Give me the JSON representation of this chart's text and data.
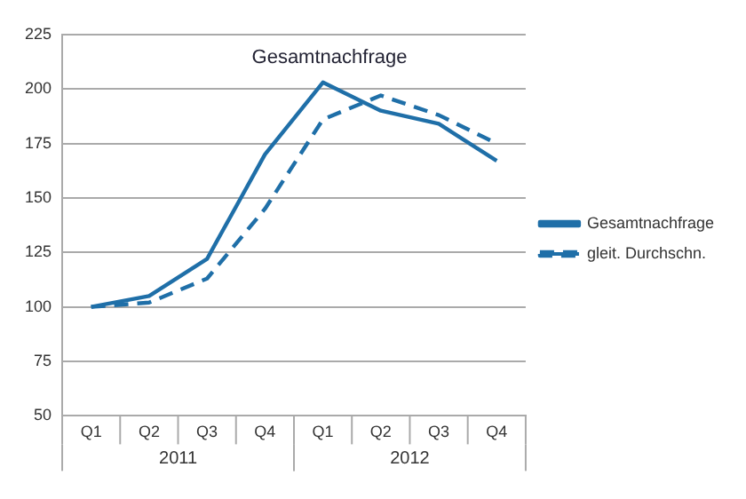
{
  "chart_data": {
    "type": "line",
    "title": "Gesamtnachfrage",
    "categories": [
      "Q1",
      "Q2",
      "Q3",
      "Q4",
      "Q1",
      "Q2",
      "Q3",
      "Q4"
    ],
    "series": [
      {
        "name": "Gesamtnachfrage",
        "color": "#1f6fa8",
        "line_style": "solid",
        "values": [
          100,
          105,
          122,
          170,
          203,
          190,
          184,
          167
        ]
      },
      {
        "name": "gleit. Durchschn.",
        "color": "#1f6fa8",
        "line_style": "dashed",
        "values": [
          100,
          102,
          113,
          145,
          186,
          197,
          188,
          175
        ]
      }
    ],
    "annotations": [
      "2011",
      "2012"
    ],
    "ylim": [
      50,
      225
    ],
    "yticks": [
      50,
      75,
      100,
      125,
      150,
      175,
      200,
      225
    ],
    "grid": "y",
    "legend": "right",
    "marker": "none"
  }
}
